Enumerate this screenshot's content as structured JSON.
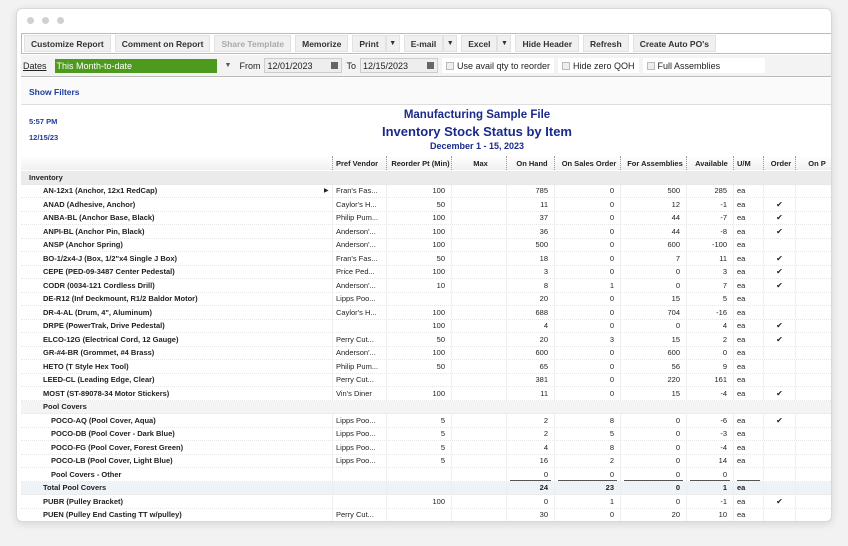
{
  "toolbar": {
    "buttons": [
      "Customize Report",
      "Comment on Report",
      "Share Template",
      "Memorize",
      "Print",
      "E-mail",
      "Excel",
      "Hide Header",
      "Refresh",
      "Create Auto PO's"
    ]
  },
  "filters": {
    "dates_label": "Dates",
    "dates_value": "This Month-to-date",
    "from_label": "From",
    "from_value": "12/01/2023",
    "to_label": "To",
    "to_value": "12/15/2023",
    "checkboxes": [
      "Use avail qty to reorder",
      "Hide zero QOH",
      "Full Assemblies"
    ],
    "accent": "#4e9a1e"
  },
  "show_filters": "Show Filters",
  "report": {
    "time": "5:57 PM",
    "date": "12/15/23",
    "company": "Manufacturing Sample File",
    "title": "Inventory Stock Status by Item",
    "period": "December 1 - 15, 2023",
    "columns": [
      "Pref Vendor",
      "Reorder Pt (Min)",
      "Max",
      "On Hand",
      "On Sales Order",
      "For Assemblies",
      "Available",
      "U/M",
      "Order",
      "On P"
    ],
    "rows": [
      {
        "type": "sec",
        "name": "Inventory"
      },
      {
        "name": "AN-12x1 (Anchor, 12x1 RedCap)",
        "vendor": "Fran's Fas...",
        "reorder": "100",
        "onhand": "785",
        "so": "0",
        "asm": "500",
        "avail": "285",
        "um": "ea",
        "order": false,
        "marker": true
      },
      {
        "name": "ANAD (Adhesive, Anchor)",
        "vendor": "Caylor's H...",
        "reorder": "50",
        "onhand": "11",
        "so": "0",
        "asm": "12",
        "avail": "-1",
        "um": "ea",
        "order": true
      },
      {
        "name": "ANBA-BL (Anchor Base, Black)",
        "vendor": "Philip Pum...",
        "reorder": "100",
        "onhand": "37",
        "so": "0",
        "asm": "44",
        "avail": "-7",
        "um": "ea",
        "order": true
      },
      {
        "name": "ANPI-BL (Anchor Pin, Black)",
        "vendor": "Anderson'...",
        "reorder": "100",
        "onhand": "36",
        "so": "0",
        "asm": "44",
        "avail": "-8",
        "um": "ea",
        "order": true
      },
      {
        "name": "ANSP (Anchor Spring)",
        "vendor": "Anderson'...",
        "reorder": "100",
        "onhand": "500",
        "so": "0",
        "asm": "600",
        "avail": "-100",
        "um": "ea",
        "order": false
      },
      {
        "name": "BO-1/2x4-J (Box, 1/2\"x4 Single J Box)",
        "vendor": "Fran's Fas...",
        "reorder": "50",
        "onhand": "18",
        "so": "0",
        "asm": "7",
        "avail": "11",
        "um": "ea",
        "order": true
      },
      {
        "name": "CEPE (PED-09-3487  Center Pedestal)",
        "vendor": "Price Ped...",
        "reorder": "100",
        "onhand": "3",
        "so": "0",
        "asm": "0",
        "avail": "3",
        "um": "ea",
        "order": true
      },
      {
        "name": "CODR (0034-121  Cordless Drill)",
        "vendor": "Anderson'...",
        "reorder": "10",
        "onhand": "8",
        "so": "1",
        "asm": "0",
        "avail": "7",
        "um": "ea",
        "order": true
      },
      {
        "name": "DE-R12 (Inf Deckmount, R1/2 Baldor Motor)",
        "vendor": "Lipps Poo...",
        "reorder": "",
        "onhand": "20",
        "so": "0",
        "asm": "15",
        "avail": "5",
        "um": "ea",
        "order": false
      },
      {
        "name": "DR-4-AL (Drum, 4\", Aluminum)",
        "vendor": "Caylor's H...",
        "reorder": "100",
        "onhand": "688",
        "so": "0",
        "asm": "704",
        "avail": "-16",
        "um": "ea",
        "order": false
      },
      {
        "name": "DRPE (PowerTrak, Drive Pedestal)",
        "vendor": "",
        "reorder": "100",
        "onhand": "4",
        "so": "0",
        "asm": "0",
        "avail": "4",
        "um": "ea",
        "order": true
      },
      {
        "name": "ELCO-12G (Electrical Cord, 12 Gauge)",
        "vendor": "Perry Cut...",
        "reorder": "50",
        "onhand": "20",
        "so": "3",
        "asm": "15",
        "avail": "2",
        "um": "ea",
        "order": true
      },
      {
        "name": "GR-#4-BR (Grommet, #4 Brass)",
        "vendor": "Anderson'...",
        "reorder": "100",
        "onhand": "600",
        "so": "0",
        "asm": "600",
        "avail": "0",
        "um": "ea",
        "order": false
      },
      {
        "name": "HETO (T Style Hex Tool)",
        "vendor": "Philip Pum...",
        "reorder": "50",
        "onhand": "65",
        "so": "0",
        "asm": "56",
        "avail": "9",
        "um": "ea",
        "order": false
      },
      {
        "name": "LEED-CL (Leading Edge, Clear)",
        "vendor": "Perry Cut...",
        "reorder": "",
        "onhand": "381",
        "so": "0",
        "asm": "220",
        "avail": "161",
        "um": "ea",
        "order": false
      },
      {
        "name": "MOST (ST-89078-34  Motor Stickers)",
        "vendor": "Vin's Diner",
        "reorder": "100",
        "onhand": "11",
        "so": "0",
        "asm": "15",
        "avail": "-4",
        "um": "ea",
        "order": true
      },
      {
        "type": "sub",
        "name": "Pool Covers"
      },
      {
        "name": "POCO-AQ (Pool Cover, Aqua)",
        "vendor": "Lipps Poo...",
        "reorder": "5",
        "onhand": "2",
        "so": "8",
        "asm": "0",
        "avail": "-6",
        "um": "ea",
        "order": true,
        "indent": 2
      },
      {
        "name": "POCO-DB (Pool Cover - Dark Blue)",
        "vendor": "Lipps Poo...",
        "reorder": "5",
        "onhand": "2",
        "so": "5",
        "asm": "0",
        "avail": "-3",
        "um": "ea",
        "order": false,
        "indent": 2
      },
      {
        "name": "POCO-FG (Pool Cover, Forest Green)",
        "vendor": "Lipps Poo...",
        "reorder": "5",
        "onhand": "4",
        "so": "8",
        "asm": "0",
        "avail": "-4",
        "um": "ea",
        "order": false,
        "indent": 2
      },
      {
        "name": "POCO-LB (Pool Cover, Light Blue)",
        "vendor": "Lipps Poo...",
        "reorder": "5",
        "onhand": "16",
        "so": "2",
        "asm": "0",
        "avail": "14",
        "um": "ea",
        "order": false,
        "indent": 2
      },
      {
        "name": "Pool Covers - Other",
        "vendor": "",
        "reorder": "",
        "onhand": "0",
        "so": "0",
        "asm": "0",
        "avail": "0",
        "um": "",
        "order": false,
        "indent": 2,
        "underline": true
      },
      {
        "type": "tot",
        "name": "Total Pool Covers",
        "onhand": "24",
        "so": "23",
        "asm": "0",
        "avail": "1",
        "um": "ea"
      },
      {
        "name": "PUBR (Pulley Bracket)",
        "vendor": "",
        "reorder": "100",
        "onhand": "0",
        "so": "1",
        "asm": "0",
        "avail": "-1",
        "um": "ea",
        "order": true
      },
      {
        "name": "PUEN (Pulley End Casting TT w/pulley)",
        "vendor": "Perry Cut...",
        "reorder": "",
        "onhand": "30",
        "so": "0",
        "asm": "20",
        "avail": "10",
        "um": "ea",
        "order": false
      }
    ]
  }
}
